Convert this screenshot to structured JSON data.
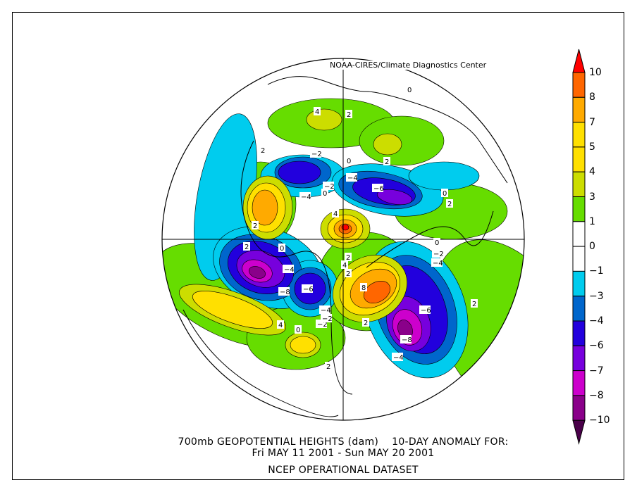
{
  "credit": "NOAA-CIRES/Climate Diagnostics Center",
  "title_line1": "700mb GEOPOTENTIAL HEIGHTS (dam)    10-DAY ANOMALY FOR:",
  "title_line2": "Fri MAY 11 2001 - Sun MAY 20 2001",
  "title_line3": "NCEP OPERATIONAL DATASET",
  "colorbar": {
    "labels": [
      "10",
      "8",
      "7",
      "5",
      "4",
      "3",
      "1",
      "0",
      "−1",
      "−3",
      "−4",
      "−6",
      "−7",
      "−8",
      "−10"
    ],
    "colors": [
      "#ff0000",
      "#ff6600",
      "#ffaa00",
      "#ffe000",
      "#ffe000",
      "#ccdd00",
      "#66dd00",
      "#ffffff",
      "#ffffff",
      "#00ccee",
      "#0066cc",
      "#2200dd",
      "#7700dd",
      "#cc00cc",
      "#8a008a",
      "#4a004a"
    ]
  },
  "contour_labels": [
    "0",
    "4",
    "2",
    "2",
    "2",
    "0",
    "−2",
    "−4",
    "−6",
    "−4",
    "−2",
    "0",
    "4",
    "2",
    "0",
    "2",
    "−2",
    "0",
    "2",
    "−4",
    "−8",
    "−6",
    "4",
    "2",
    "−4",
    "−2",
    "2",
    "8",
    "−4",
    "−6",
    "−8",
    "−4",
    "2",
    "4",
    "2",
    "0",
    "2",
    "0",
    "−2"
  ]
}
